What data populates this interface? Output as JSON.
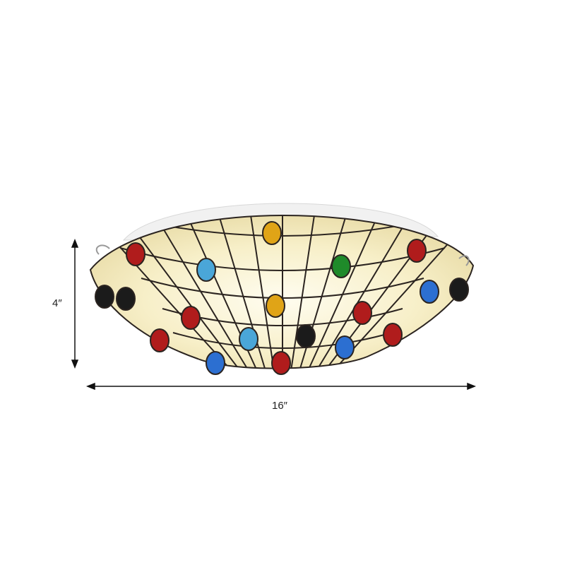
{
  "dimensions": {
    "height_label": "4″",
    "width_label": "16″"
  },
  "colors": {
    "glass": "#f6eecb",
    "glass_glow": "#fffbe6",
    "lead_lines": "#2b2420",
    "canopy": "#f2f2f2",
    "gems": [
      "#b01c1c",
      "#e0a417",
      "#4aa6d8",
      "#1f8a2a",
      "#1b1b1b",
      "#2c6fd1"
    ]
  }
}
